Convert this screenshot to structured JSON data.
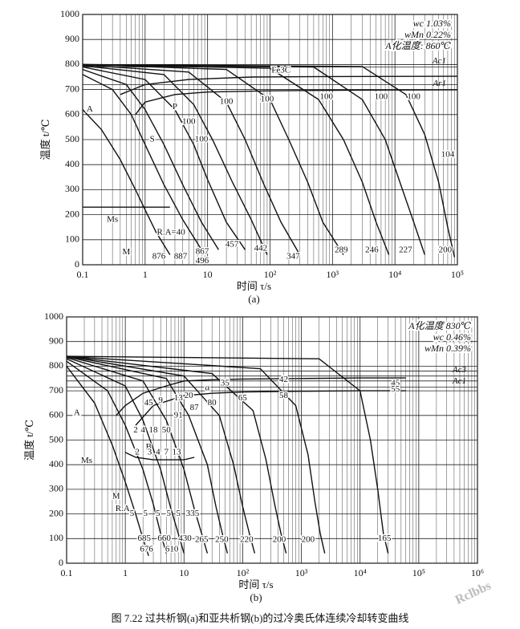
{
  "chart_data": [
    {
      "type": "line",
      "caption": "(a)",
      "x_label": "时间 τ/s",
      "y_label": "温度 t/℃",
      "xscale": "log",
      "xlim": [
        0.1,
        100000
      ],
      "ylim": [
        0,
        1000
      ],
      "minor_grid": true,
      "grid": true,
      "xticks": [
        0.1,
        1,
        10,
        {
          "value": 100,
          "label": "10²"
        },
        {
          "value": 1000,
          "label": "10³"
        },
        {
          "value": 10000,
          "label": "10⁴"
        },
        {
          "value": 100000,
          "label": "10⁵"
        }
      ],
      "yticks": [
        0,
        100,
        200,
        300,
        400,
        500,
        600,
        700,
        800,
        900,
        1000
      ],
      "info": [
        "wc 1.03%",
        "wMn 0.22%",
        "A化温度: 860℃"
      ],
      "reference_lines": [
        {
          "value": 800,
          "label": null
        },
        {
          "value": 790,
          "label": "Ac1"
        },
        {
          "value": 720,
          "label": null
        },
        {
          "value": 700,
          "label": "Ar1"
        }
      ],
      "series": [
        {
          "color": "#111",
          "x": [
            0.1,
            0.2,
            0.4,
            0.7,
            1,
            1.5,
            2.5
          ],
          "values": [
            620,
            540,
            420,
            300,
            220,
            130,
            40
          ]
        },
        {
          "color": "#111",
          "x": [
            0.1,
            0.3,
            0.6,
            1,
            2,
            4,
            8
          ],
          "values": [
            760,
            700,
            600,
            480,
            320,
            180,
            60
          ]
        },
        {
          "color": "#111",
          "x": [
            0.1,
            0.5,
            1,
            2,
            4,
            8,
            15
          ],
          "values": [
            780,
            720,
            620,
            480,
            320,
            170,
            60
          ]
        },
        {
          "color": "#111",
          "x": [
            0.1,
            1,
            3,
            6,
            10,
            20,
            40
          ],
          "values": [
            790,
            740,
            620,
            480,
            340,
            170,
            60
          ]
        },
        {
          "color": "#111",
          "x": [
            0.1,
            2,
            6,
            12,
            25,
            50,
            90
          ],
          "values": [
            795,
            760,
            640,
            500,
            330,
            180,
            40
          ]
        },
        {
          "color": "#111",
          "x": [
            0.1,
            5,
            20,
            40,
            80,
            150,
            300
          ],
          "values": [
            798,
            770,
            650,
            500,
            320,
            170,
            40
          ]
        },
        {
          "color": "#111",
          "x": [
            0.1,
            20,
            100,
            200,
            400,
            700,
            1500
          ],
          "values": [
            800,
            780,
            660,
            500,
            330,
            170,
            40
          ]
        },
        {
          "color": "#111",
          "x": [
            0.1,
            100,
            600,
            1500,
            3000,
            5000,
            8000
          ],
          "values": [
            800,
            785,
            660,
            500,
            330,
            170,
            40
          ]
        },
        {
          "color": "#111",
          "x": [
            0.1,
            500,
            3000,
            7000,
            12000,
            20000,
            30000
          ],
          "values": [
            800,
            790,
            660,
            500,
            330,
            170,
            40
          ]
        },
        {
          "color": "#111",
          "x": [
            0.1,
            3000,
            15000,
            30000,
            50000,
            70000,
            90000
          ],
          "values": [
            800,
            792,
            680,
            520,
            330,
            150,
            30
          ]
        },
        {
          "color": "#111",
          "x": [
            0.7,
            1,
            3,
            10,
            100,
            1000,
            10000,
            100000
          ],
          "values": [
            600,
            650,
            680,
            690,
            695,
            697,
            698,
            699
          ]
        },
        {
          "color": "#111",
          "x": [
            0.4,
            1,
            5,
            50,
            1000,
            100000
          ],
          "values": [
            680,
            720,
            740,
            750,
            752,
            753
          ]
        },
        {
          "color": "#111",
          "x": [
            0.1,
            2.5
          ],
          "values": [
            230,
            230
          ]
        }
      ],
      "annotations": [
        {
          "text": "A",
          "x": 0.13,
          "y": 620
        },
        {
          "text": "P",
          "x": 3,
          "y": 630
        },
        {
          "text": "S",
          "x": 1.3,
          "y": 500
        },
        {
          "text": "Fe3C",
          "x": 150,
          "y": 775
        },
        {
          "text": "Ms",
          "x": 0.3,
          "y": 180
        },
        {
          "text": "M",
          "x": 0.5,
          "y": 50
        },
        {
          "text": "R.A=40",
          "x": 2.6,
          "y": 128
        },
        {
          "text": "100",
          "x": 20,
          "y": 650
        },
        {
          "text": "100",
          "x": 90,
          "y": 660
        },
        {
          "text": "100",
          "x": 800,
          "y": 670
        },
        {
          "text": "100",
          "x": 6000,
          "y": 670
        },
        {
          "text": "100",
          "x": 20000,
          "y": 670
        },
        {
          "text": "100",
          "x": 5,
          "y": 570
        },
        {
          "text": "100",
          "x": 8,
          "y": 500
        },
        {
          "text": "104",
          "x": 70000,
          "y": 440
        },
        {
          "text": "876",
          "x": 1.66,
          "y": 32
        },
        {
          "text": "887",
          "x": 3.7,
          "y": 32
        },
        {
          "text": "867",
          "x": 8.2,
          "y": 52
        },
        {
          "text": "496",
          "x": 8.2,
          "y": 15
        },
        {
          "text": "457",
          "x": 24.6,
          "y": 80
        },
        {
          "text": "442",
          "x": 71,
          "y": 64
        },
        {
          "text": "347",
          "x": 235,
          "y": 32
        },
        {
          "text": "289",
          "x": 1380,
          "y": 58
        },
        {
          "text": "246",
          "x": 4260,
          "y": 58
        },
        {
          "text": "227",
          "x": 14800,
          "y": 58
        },
        {
          "text": "200",
          "x": 64000,
          "y": 58
        }
      ]
    },
    {
      "type": "line",
      "caption": "(b)",
      "x_label": "时间 τ/s",
      "y_label": "温度 t/℃",
      "xscale": "log",
      "xlim": [
        0.1,
        1000000
      ],
      "ylim": [
        0,
        1000
      ],
      "minor_grid": true,
      "grid": true,
      "xticks": [
        0.1,
        1,
        10,
        {
          "value": 100,
          "label": "10²"
        },
        {
          "value": 1000,
          "label": "10³"
        },
        {
          "value": 10000,
          "label": "10⁴"
        },
        {
          "value": 100000,
          "label": "10⁵"
        },
        {
          "value": 1000000,
          "label": "10⁶"
        }
      ],
      "yticks": [
        0,
        100,
        200,
        300,
        400,
        500,
        600,
        700,
        800,
        900,
        1000
      ],
      "info": [
        "A化温度 830℃",
        "wc 0.46%",
        "wMn 0.39%"
      ],
      "reference_lines": [
        {
          "value": 780,
          "label": null
        },
        {
          "value": 760,
          "label": "Ac3"
        },
        {
          "value": 740,
          "label": null
        },
        {
          "value": 715,
          "label": "Ac1"
        }
      ],
      "series": [
        {
          "color": "#111",
          "x": [
            0.1,
            0.3,
            0.6,
            1,
            1.5,
            2,
            2.5
          ],
          "values": [
            800,
            650,
            480,
            330,
            200,
            100,
            30
          ]
        },
        {
          "color": "#111",
          "x": [
            0.1,
            0.5,
            1,
            2,
            3,
            4,
            5
          ],
          "values": [
            820,
            700,
            560,
            380,
            240,
            120,
            40
          ]
        },
        {
          "color": "#111",
          "x": [
            0.1,
            1,
            2,
            4,
            6,
            8,
            10
          ],
          "values": [
            830,
            720,
            580,
            380,
            220,
            120,
            40
          ]
        },
        {
          "color": "#111",
          "x": [
            0.1,
            2,
            5,
            10,
            15,
            20,
            25
          ],
          "values": [
            835,
            740,
            580,
            380,
            220,
            120,
            40
          ]
        },
        {
          "color": "#111",
          "x": [
            0.1,
            5,
            12,
            25,
            35,
            45,
            55
          ],
          "values": [
            838,
            750,
            600,
            400,
            230,
            120,
            40
          ]
        },
        {
          "color": "#111",
          "x": [
            0.1,
            10,
            40,
            70,
            100,
            130,
            160
          ],
          "values": [
            840,
            760,
            600,
            400,
            230,
            120,
            40
          ]
        },
        {
          "color": "#111",
          "x": [
            0.1,
            30,
            150,
            250,
            350,
            450,
            550
          ],
          "values": [
            840,
            770,
            620,
            420,
            240,
            120,
            40
          ]
        },
        {
          "color": "#111",
          "x": [
            0.1,
            200,
            800,
            1300,
            1700,
            2100,
            2500
          ],
          "values": [
            840,
            790,
            640,
            440,
            250,
            120,
            40
          ]
        },
        {
          "color": "#111",
          "x": [
            0.1,
            2000,
            10000,
            15000,
            20000,
            25000,
            30000
          ],
          "values": [
            840,
            830,
            700,
            500,
            300,
            120,
            40
          ]
        },
        {
          "color": "#111",
          "x": [
            0.7,
            1,
            2,
            5,
            10,
            30,
            100,
            1000,
            10000,
            60000
          ],
          "values": [
            600,
            640,
            690,
            720,
            740,
            745,
            748,
            750,
            752,
            752
          ]
        },
        {
          "color": "#111",
          "x": [
            1.5,
            3,
            10,
            30,
            100,
            1000,
            10000,
            60000
          ],
          "values": [
            560,
            640,
            680,
            690,
            695,
            698,
            700,
            700
          ]
        },
        {
          "color": "#111",
          "x": [
            1,
            1.5,
            3,
            6,
            10,
            15
          ],
          "values": [
            450,
            430,
            420,
            420,
            420,
            430
          ]
        }
      ],
      "annotations": [
        {
          "text": "A",
          "x": 0.15,
          "y": 610
        },
        {
          "text": "Ms",
          "x": 0.22,
          "y": 415
        },
        {
          "text": "M",
          "x": 0.7,
          "y": 270
        },
        {
          "text": "R.A",
          "x": 0.9,
          "y": 220
        },
        {
          "text": "B",
          "x": 2.5,
          "y": 470
        },
        {
          "text": "2",
          "x": 1.5,
          "y": 540
        },
        {
          "text": "4",
          "x": 2,
          "y": 540
        },
        {
          "text": "18",
          "x": 3,
          "y": 540
        },
        {
          "text": "50",
          "x": 5,
          "y": 540
        },
        {
          "text": "45",
          "x": 2.5,
          "y": 650
        },
        {
          "text": "9",
          "x": 4,
          "y": 660
        },
        {
          "text": "13",
          "x": 8,
          "y": 670
        },
        {
          "text": "20",
          "x": 12,
          "y": 680
        },
        {
          "text": "35",
          "x": 50,
          "y": 730
        },
        {
          "text": "42",
          "x": 500,
          "y": 745
        },
        {
          "text": "45",
          "x": 40000,
          "y": 730
        },
        {
          "text": "55",
          "x": 40000,
          "y": 705
        },
        {
          "text": "91",
          "x": 8,
          "y": 600
        },
        {
          "text": "87",
          "x": 15,
          "y": 630
        },
        {
          "text": "80",
          "x": 30,
          "y": 650
        },
        {
          "text": "65",
          "x": 100,
          "y": 670
        },
        {
          "text": "58",
          "x": 500,
          "y": 680
        },
        {
          "text": "α",
          "x": 25,
          "y": 710
        },
        {
          "text": "2",
          "x": 1.6,
          "y": 450
        },
        {
          "text": "3",
          "x": 2.6,
          "y": 450
        },
        {
          "text": "4",
          "x": 3.6,
          "y": 450
        },
        {
          "text": "7",
          "x": 5,
          "y": 450
        },
        {
          "text": "13",
          "x": 7.5,
          "y": 450
        },
        {
          "text": "5",
          "x": 1.3,
          "y": 200
        },
        {
          "text": "5",
          "x": 2.2,
          "y": 200
        },
        {
          "text": "5",
          "x": 3.6,
          "y": 200
        },
        {
          "text": "5",
          "x": 5.5,
          "y": 200
        },
        {
          "text": "5",
          "x": 8,
          "y": 200
        },
        {
          "text": "335",
          "x": 14,
          "y": 200
        },
        {
          "text": "685",
          "x": 2.1,
          "y": 100
        },
        {
          "text": "676",
          "x": 2.3,
          "y": 55
        },
        {
          "text": "660",
          "x": 4.6,
          "y": 100
        },
        {
          "text": "610",
          "x": 6.2,
          "y": 55
        },
        {
          "text": "430",
          "x": 10.4,
          "y": 100
        },
        {
          "text": "265",
          "x": 20,
          "y": 95
        },
        {
          "text": "250",
          "x": 44,
          "y": 95
        },
        {
          "text": "220",
          "x": 117,
          "y": 95
        },
        {
          "text": "200",
          "x": 420,
          "y": 95
        },
        {
          "text": "200",
          "x": 1300,
          "y": 95
        },
        {
          "text": "165",
          "x": 26000,
          "y": 100
        }
      ]
    }
  ],
  "figure_caption": "图 7.22  过共析钢(a)和亚共析钢(b)的过冷奥氏体连续冷却转变曲线",
  "watermark": "Rclbbs"
}
